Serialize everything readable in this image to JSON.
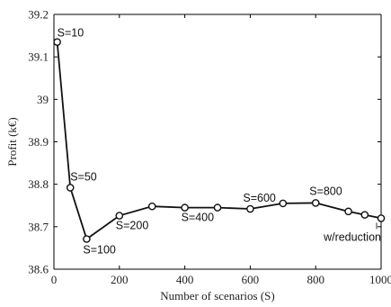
{
  "chart_data": {
    "type": "line",
    "xlabel": "Number of scenarios (S)",
    "ylabel": "Profit (k€)",
    "xlim": [
      0,
      1000
    ],
    "ylim": [
      38.6,
      39.2
    ],
    "xticks": [
      "0",
      "200",
      "400",
      "600",
      "800",
      "1000"
    ],
    "yticks": [
      "38.6",
      "38.7",
      "38.8",
      "38.9",
      "39",
      "39.1",
      "39.2"
    ],
    "grid": false,
    "marker": "circle",
    "color": "#111111",
    "x": [
      10,
      50,
      100,
      200,
      300,
      400,
      500,
      600,
      700,
      800,
      900,
      950,
      1000
    ],
    "y": [
      39.135,
      38.792,
      38.671,
      38.726,
      38.748,
      38.745,
      38.745,
      38.742,
      38.755,
      38.756,
      38.736,
      38.728,
      38.72
    ],
    "annotations": [
      {
        "text": "S=10",
        "x": 10,
        "y": 39.135
      },
      {
        "text": "S=50",
        "x": 50,
        "y": 38.792
      },
      {
        "text": "S=100",
        "x": 100,
        "y": 38.671
      },
      {
        "text": "S=200",
        "x": 200,
        "y": 38.726
      },
      {
        "text": "S=400",
        "x": 400,
        "y": 38.745
      },
      {
        "text": "S=600",
        "x": 600,
        "y": 38.742
      },
      {
        "text": "S=800",
        "x": 800,
        "y": 38.756
      },
      {
        "text": "w/reduction",
        "x": 1000,
        "y": 38.72
      }
    ]
  }
}
